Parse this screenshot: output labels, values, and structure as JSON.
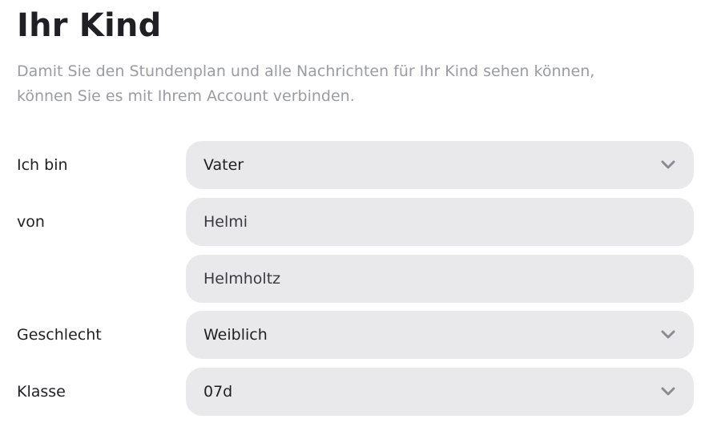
{
  "page": {
    "title": "Ihr Kind",
    "intro_line1": "Damit Sie den Stundenplan und alle Nachrichten für Ihr Kind sehen können,",
    "intro_line2": "können Sie es mit Ihrem Account verbinden."
  },
  "form": {
    "relation": {
      "label": "Ich bin",
      "value": "Vater",
      "icon": "chevron-down-icon"
    },
    "first_name": {
      "label": "von",
      "value": "Helmi"
    },
    "last_name": {
      "label": "",
      "value": "Helmholtz"
    },
    "gender": {
      "label": "Geschlecht",
      "value": "Weiblich",
      "icon": "chevron-down-icon"
    },
    "class": {
      "label": "Klasse",
      "value": "07d",
      "icon": "chevron-down-icon"
    }
  },
  "colors": {
    "field_bg": "#e9e9eb",
    "text": "#1f1f24",
    "muted": "#9b9ca3",
    "chevron": "#8a8b92"
  }
}
